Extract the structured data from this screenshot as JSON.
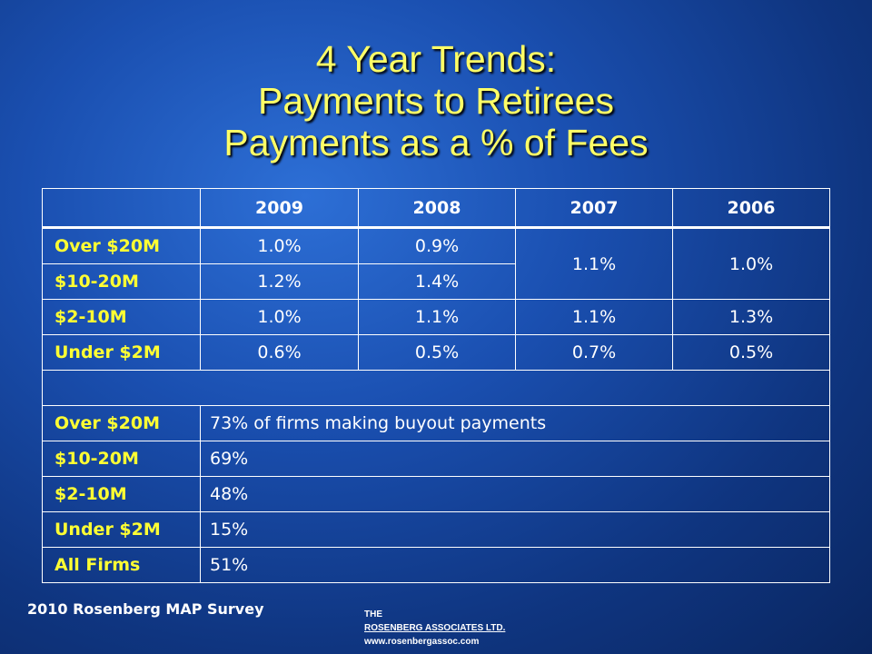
{
  "title": {
    "line1": "4 Year Trends:",
    "line2": "Payments to Retirees",
    "line3": "Payments as a % of Fees"
  },
  "table": {
    "years": [
      "2009",
      "2008",
      "2007",
      "2006"
    ],
    "rows": [
      {
        "label": "Over $20M",
        "v2009": "1.0%",
        "v2008": "0.9%"
      },
      {
        "label": "$10-20M",
        "v2009": "1.2%",
        "v2008": "1.4%"
      },
      {
        "label": "$2-10M",
        "v2009": "1.0%",
        "v2008": "1.1%",
        "v2007": "1.1%",
        "v2006": "1.3%"
      },
      {
        "label": "Under $2M",
        "v2009": "0.6%",
        "v2008": "0.5%",
        "v2007": "0.7%",
        "v2006": "0.5%"
      }
    ],
    "merged_2007": "1.1%",
    "merged_2006": "1.0%",
    "buyout_rows": [
      {
        "label": "Over $20M",
        "value": "73% of firms making buyout payments"
      },
      {
        "label": "$10-20M",
        "value": "69%"
      },
      {
        "label": "$2-10M",
        "value": "48%"
      },
      {
        "label": "Under $2M",
        "value": "15%"
      },
      {
        "label": "All Firms",
        "value": "51%"
      }
    ]
  },
  "footer": {
    "survey": "2010 Rosenberg MAP Survey",
    "brand_the": "THE",
    "brand_name": "ROSENBERG ASSOCIATES LTD.",
    "brand_url": "www.rosenbergassoc.com"
  },
  "colors": {
    "title": "#ffff66",
    "row_label": "#ffff33",
    "background": "#1a4fb0"
  }
}
